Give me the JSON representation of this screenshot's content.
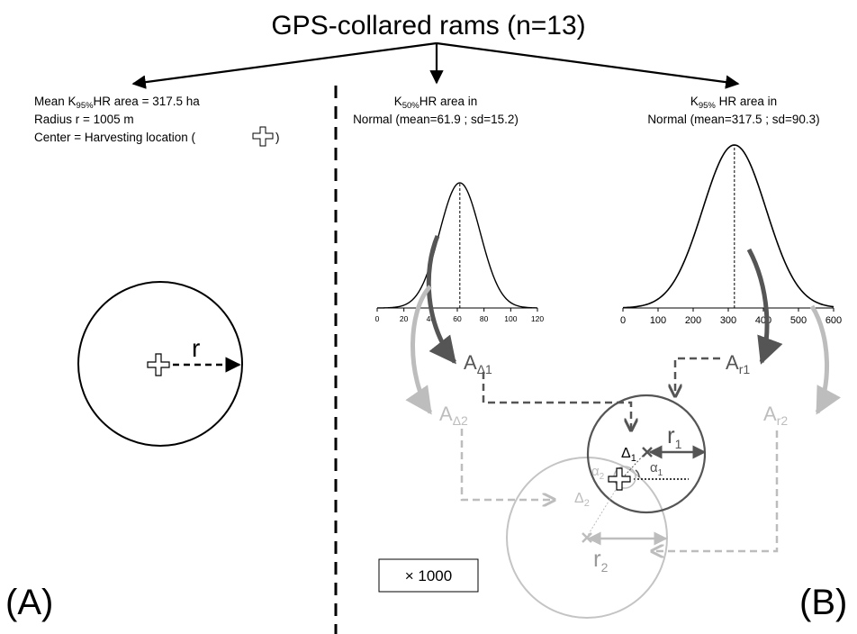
{
  "title": "GPS-collared rams (n=13)",
  "panel_a": {
    "label": "(A)",
    "line1_pre": "Mean K",
    "line1_sub": "95%",
    "line1_post": "HR area = 317.5 ha",
    "line2": "Radius r = 1005 m",
    "line3_pre": "Center = Harvesting location (",
    "line3_post": ")",
    "radius_label": "r"
  },
  "panel_b": {
    "label": "(B)",
    "k50_line1_pre": "K",
    "k50_line1_sub": "50%",
    "k50_line1_post": "HR area in",
    "k50_line2": "Normal (mean=61.9 ; sd=15.2)",
    "k95_line1_pre": "K",
    "k95_line1_sub": "95%",
    "k95_line1_post": " HR area in",
    "k95_line2": "Normal (mean=317.5 ; sd=90.3)",
    "k50_ticks": [
      "0",
      "20",
      "40",
      "60",
      "80",
      "100",
      "120"
    ],
    "k95_ticks": [
      "0",
      "100",
      "200",
      "300",
      "400",
      "500",
      "600"
    ],
    "scale_box": "× 1000",
    "A_delta1": {
      "main": "A",
      "sub": "Δ1"
    },
    "A_delta2": {
      "main": "A",
      "sub": "Δ2"
    },
    "A_r1": {
      "main": "A",
      "sub": "r1"
    },
    "A_r2": {
      "main": "A",
      "sub": "r2"
    },
    "r1": {
      "main": "r",
      "sub": "1"
    },
    "r2": {
      "main": "r",
      "sub": "2"
    },
    "delta1": {
      "main": "Δ",
      "sub": "1"
    },
    "delta2": {
      "main": "Δ",
      "sub": "2"
    },
    "alpha1": {
      "main": "α",
      "sub": "1"
    },
    "alpha2": {
      "main": "α",
      "sub": "2"
    }
  },
  "colors": {
    "dark": "#555555",
    "light": "#bdbdbd",
    "black": "#000000"
  },
  "chart_data": [
    {
      "type": "line",
      "name": "K50% HR area",
      "distribution": "normal",
      "mean": 61.9,
      "sd": 15.2,
      "xlim": [
        0,
        120
      ],
      "xticks": [
        0,
        20,
        40,
        60,
        80,
        100,
        120
      ]
    },
    {
      "type": "line",
      "name": "K95% HR area",
      "distribution": "normal",
      "mean": 317.5,
      "sd": 90.3,
      "xlim": [
        0,
        600
      ],
      "xticks": [
        0,
        100,
        200,
        300,
        400,
        500,
        600
      ]
    }
  ]
}
